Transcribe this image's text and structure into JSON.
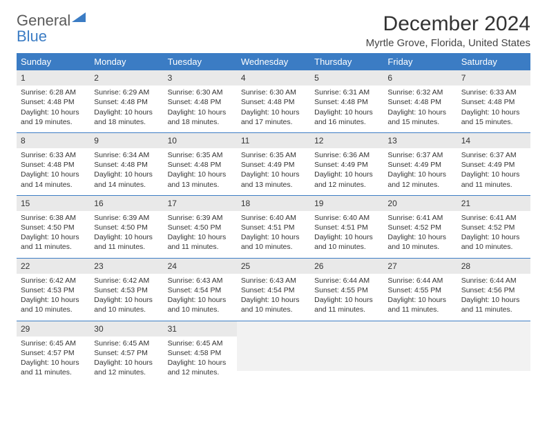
{
  "logo": {
    "text_gray": "General",
    "text_blue": "Blue"
  },
  "title": {
    "month": "December 2024",
    "location": "Myrtle Grove, Florida, United States"
  },
  "colors": {
    "header_bg": "#3b7cc4",
    "header_text": "#ffffff",
    "daynum_bg": "#e9e9e9",
    "row_divider": "#3b7cc4",
    "body_text": "#333333",
    "logo_gray": "#5a5a5a",
    "logo_blue": "#3b7cc4",
    "background": "#ffffff"
  },
  "day_headers": [
    "Sunday",
    "Monday",
    "Tuesday",
    "Wednesday",
    "Thursday",
    "Friday",
    "Saturday"
  ],
  "weeks": [
    [
      {
        "n": "1",
        "sunrise": "6:28 AM",
        "sunset": "4:48 PM",
        "daylight": "10 hours and 19 minutes."
      },
      {
        "n": "2",
        "sunrise": "6:29 AM",
        "sunset": "4:48 PM",
        "daylight": "10 hours and 18 minutes."
      },
      {
        "n": "3",
        "sunrise": "6:30 AM",
        "sunset": "4:48 PM",
        "daylight": "10 hours and 18 minutes."
      },
      {
        "n": "4",
        "sunrise": "6:30 AM",
        "sunset": "4:48 PM",
        "daylight": "10 hours and 17 minutes."
      },
      {
        "n": "5",
        "sunrise": "6:31 AM",
        "sunset": "4:48 PM",
        "daylight": "10 hours and 16 minutes."
      },
      {
        "n": "6",
        "sunrise": "6:32 AM",
        "sunset": "4:48 PM",
        "daylight": "10 hours and 15 minutes."
      },
      {
        "n": "7",
        "sunrise": "6:33 AM",
        "sunset": "4:48 PM",
        "daylight": "10 hours and 15 minutes."
      }
    ],
    [
      {
        "n": "8",
        "sunrise": "6:33 AM",
        "sunset": "4:48 PM",
        "daylight": "10 hours and 14 minutes."
      },
      {
        "n": "9",
        "sunrise": "6:34 AM",
        "sunset": "4:48 PM",
        "daylight": "10 hours and 14 minutes."
      },
      {
        "n": "10",
        "sunrise": "6:35 AM",
        "sunset": "4:48 PM",
        "daylight": "10 hours and 13 minutes."
      },
      {
        "n": "11",
        "sunrise": "6:35 AM",
        "sunset": "4:49 PM",
        "daylight": "10 hours and 13 minutes."
      },
      {
        "n": "12",
        "sunrise": "6:36 AM",
        "sunset": "4:49 PM",
        "daylight": "10 hours and 12 minutes."
      },
      {
        "n": "13",
        "sunrise": "6:37 AM",
        "sunset": "4:49 PM",
        "daylight": "10 hours and 12 minutes."
      },
      {
        "n": "14",
        "sunrise": "6:37 AM",
        "sunset": "4:49 PM",
        "daylight": "10 hours and 11 minutes."
      }
    ],
    [
      {
        "n": "15",
        "sunrise": "6:38 AM",
        "sunset": "4:50 PM",
        "daylight": "10 hours and 11 minutes."
      },
      {
        "n": "16",
        "sunrise": "6:39 AM",
        "sunset": "4:50 PM",
        "daylight": "10 hours and 11 minutes."
      },
      {
        "n": "17",
        "sunrise": "6:39 AM",
        "sunset": "4:50 PM",
        "daylight": "10 hours and 11 minutes."
      },
      {
        "n": "18",
        "sunrise": "6:40 AM",
        "sunset": "4:51 PM",
        "daylight": "10 hours and 10 minutes."
      },
      {
        "n": "19",
        "sunrise": "6:40 AM",
        "sunset": "4:51 PM",
        "daylight": "10 hours and 10 minutes."
      },
      {
        "n": "20",
        "sunrise": "6:41 AM",
        "sunset": "4:52 PM",
        "daylight": "10 hours and 10 minutes."
      },
      {
        "n": "21",
        "sunrise": "6:41 AM",
        "sunset": "4:52 PM",
        "daylight": "10 hours and 10 minutes."
      }
    ],
    [
      {
        "n": "22",
        "sunrise": "6:42 AM",
        "sunset": "4:53 PM",
        "daylight": "10 hours and 10 minutes."
      },
      {
        "n": "23",
        "sunrise": "6:42 AM",
        "sunset": "4:53 PM",
        "daylight": "10 hours and 10 minutes."
      },
      {
        "n": "24",
        "sunrise": "6:43 AM",
        "sunset": "4:54 PM",
        "daylight": "10 hours and 10 minutes."
      },
      {
        "n": "25",
        "sunrise": "6:43 AM",
        "sunset": "4:54 PM",
        "daylight": "10 hours and 10 minutes."
      },
      {
        "n": "26",
        "sunrise": "6:44 AM",
        "sunset": "4:55 PM",
        "daylight": "10 hours and 11 minutes."
      },
      {
        "n": "27",
        "sunrise": "6:44 AM",
        "sunset": "4:55 PM",
        "daylight": "10 hours and 11 minutes."
      },
      {
        "n": "28",
        "sunrise": "6:44 AM",
        "sunset": "4:56 PM",
        "daylight": "10 hours and 11 minutes."
      }
    ],
    [
      {
        "n": "29",
        "sunrise": "6:45 AM",
        "sunset": "4:57 PM",
        "daylight": "10 hours and 11 minutes."
      },
      {
        "n": "30",
        "sunrise": "6:45 AM",
        "sunset": "4:57 PM",
        "daylight": "10 hours and 12 minutes."
      },
      {
        "n": "31",
        "sunrise": "6:45 AM",
        "sunset": "4:58 PM",
        "daylight": "10 hours and 12 minutes."
      },
      null,
      null,
      null,
      null
    ]
  ],
  "labels": {
    "sunrise": "Sunrise:",
    "sunset": "Sunset:",
    "daylight": "Daylight:"
  }
}
